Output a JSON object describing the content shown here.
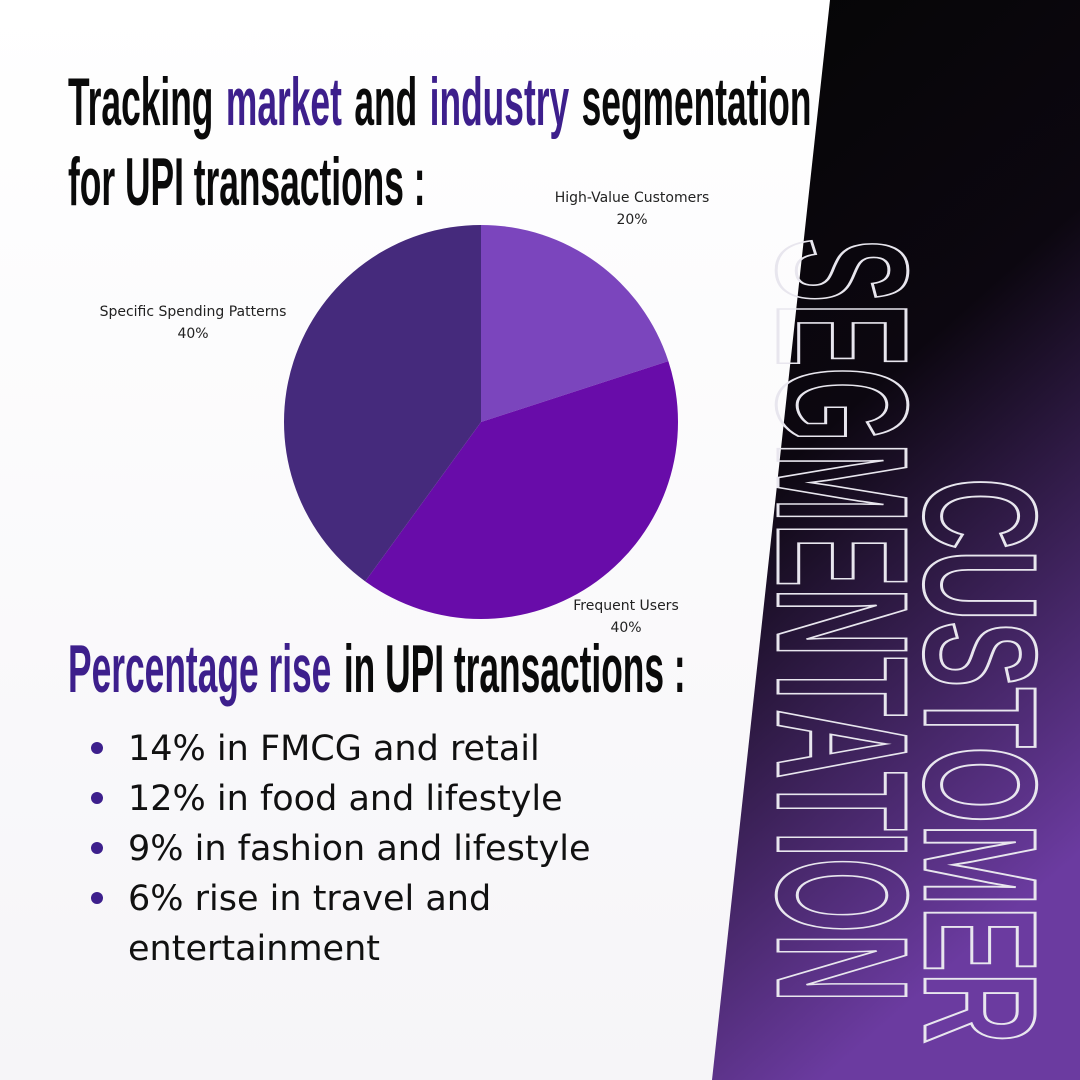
{
  "headline": {
    "line1": [
      "Tracking",
      "market",
      "and",
      "industry",
      "segmentation"
    ],
    "line2": "for UPI transactions :",
    "accent": [
      1,
      3
    ]
  },
  "subheading": {
    "accent": "Percentage rise",
    "rest": "in UPI transactions :"
  },
  "bullets": [
    [
      "14% in FMCG and retail"
    ],
    [
      "12% in food and lifestyle"
    ],
    [
      "9% in fashion and lifestyle"
    ],
    [
      "6% rise in travel and",
      "entertainment"
    ]
  ],
  "side_title": [
    "CUSTOMER",
    "SEGMENTATION"
  ],
  "chart_data": {
    "type": "pie",
    "categories": [
      "High-Value Customers",
      "Frequent Users",
      "Specific Spending Patterns"
    ],
    "values": [
      20,
      40,
      40
    ],
    "value_labels": [
      "20%",
      "40%",
      "40%"
    ],
    "colors": [
      "#7b45bd",
      "#680ca9",
      "#452a7c"
    ]
  }
}
